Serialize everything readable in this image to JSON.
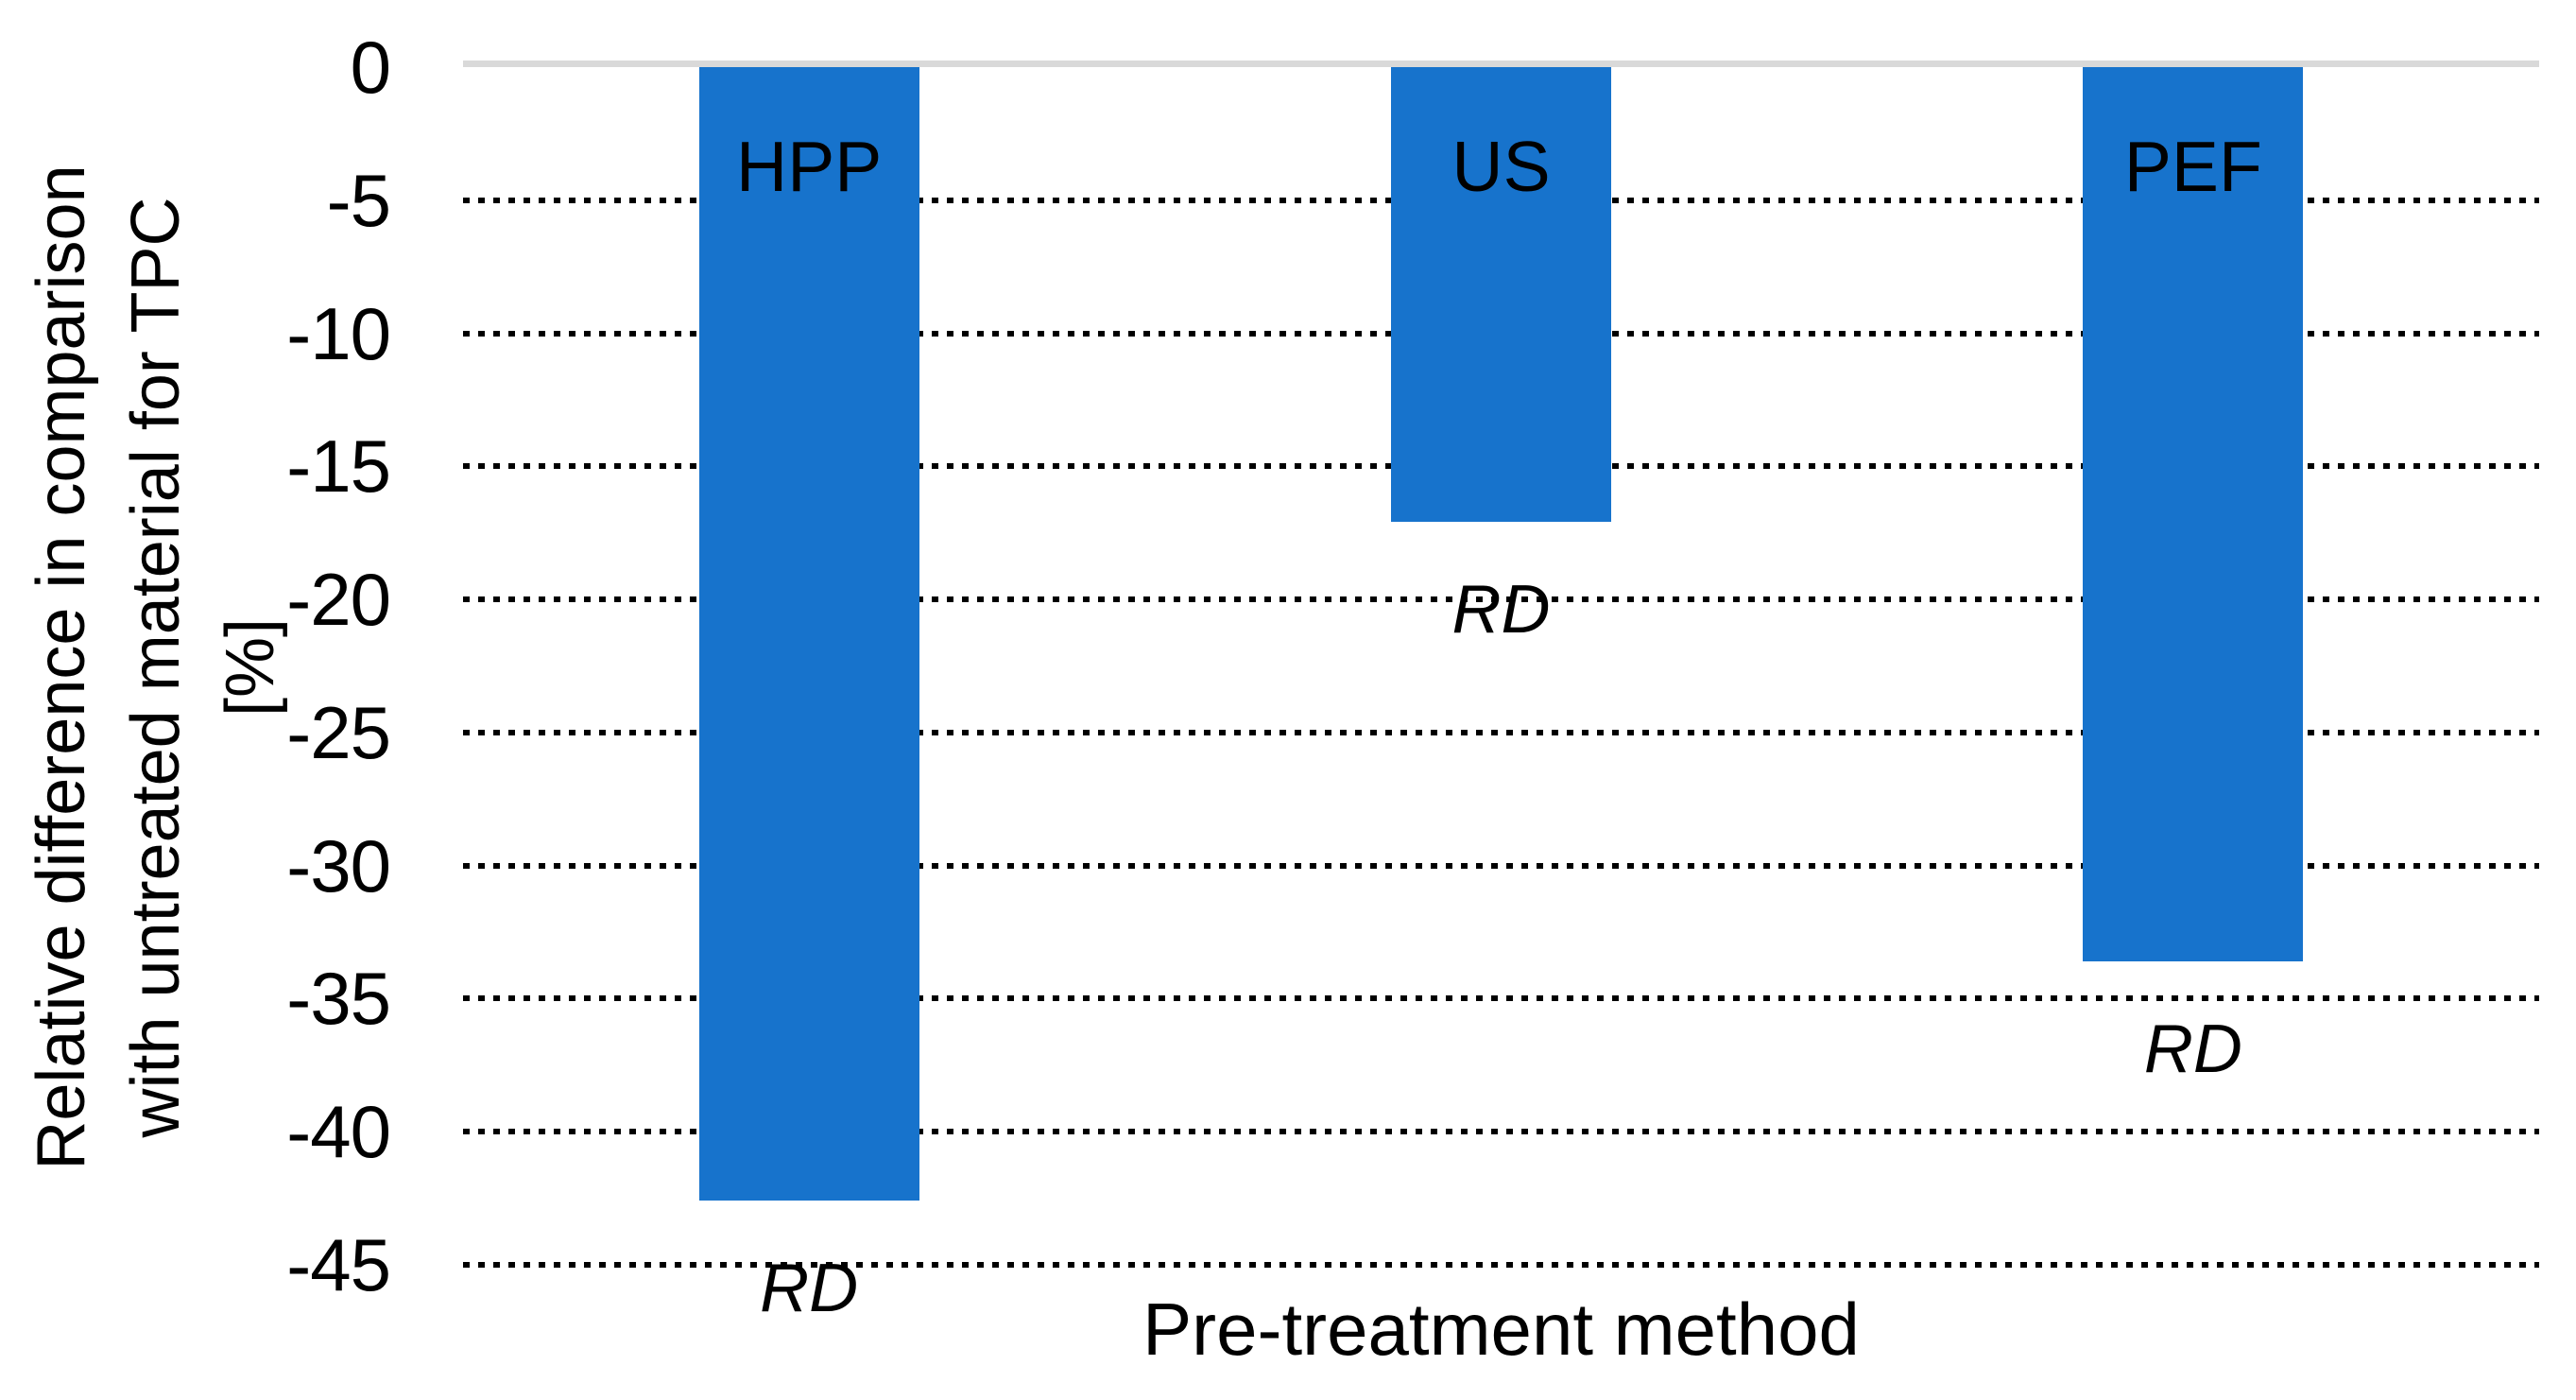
{
  "chart_data": {
    "type": "bar",
    "title": "",
    "xlabel": "Pre-treatment method",
    "ylabel_lines": [
      "Relative difference in comparison",
      "with untreated material for TPC",
      "[%]"
    ],
    "categories": [
      "HPP",
      "US",
      "PEF"
    ],
    "values": [
      -42.6,
      -17.1,
      -33.6
    ],
    "bar_data_labels": [
      "RD",
      "RD",
      "RD"
    ],
    "yticks": [
      0,
      -5,
      -10,
      -15,
      -20,
      -25,
      -30,
      -35,
      -40,
      -45
    ],
    "ylim": [
      -45,
      0
    ],
    "grid": "horizontal-dotted-black",
    "legend": "none",
    "colors": {
      "bar_fill": "#1773CC",
      "zero_axis_line": "#D9D9D9",
      "gridline": "#000000",
      "text": "#000000",
      "background": "#FFFFFF"
    }
  }
}
